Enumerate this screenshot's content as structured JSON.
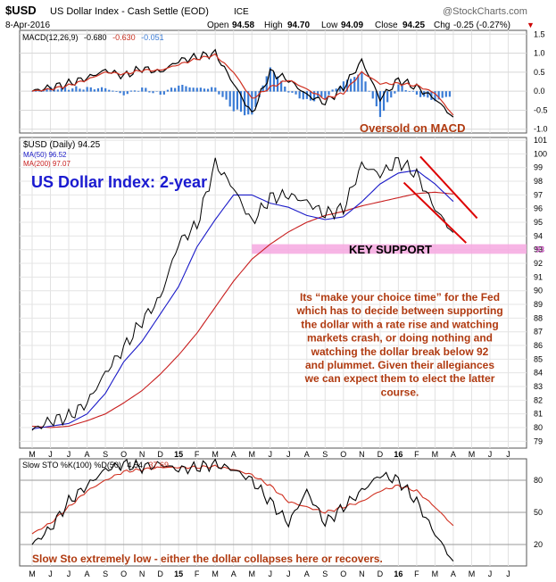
{
  "header": {
    "symbol": "$USD",
    "name": "US Dollar Index - Cash Settle (EOD)",
    "exchange": "ICE",
    "brand": "@StockCharts.com",
    "date": "8-Apr-2016",
    "open_label": "Open",
    "open": "94.58",
    "high_label": "High",
    "high": "94.70",
    "low_label": "Low",
    "low": "94.09",
    "close_label": "Close",
    "close": "94.25",
    "chg_label": "Chg",
    "chg": "-0.25 (-0.27%)",
    "chg_arrow": "▼"
  },
  "colors": {
    "price": "#000000",
    "ma50": "#1a1ac8",
    "ma200": "#c81e1e",
    "macd_hist": "#3a7bd5",
    "support_band": "#f6a8e0",
    "annotation": "#b03a10",
    "trend": "#dd0000",
    "title_blue": "#1a1ad0",
    "grid": "#c8c8c8"
  },
  "macd_panel": {
    "label": "MACD(12,26,9)",
    "v1": "-0.680",
    "v2": "-0.630",
    "v3": "-0.051",
    "annotation": "Oversold on MACD",
    "yticks": [
      "1.5",
      "1.0",
      "0.5",
      "0.0",
      "-0.5",
      "-1.0"
    ]
  },
  "price_panel": {
    "label": "$USD (Daily) 94.25",
    "ma50_label": "MA(50) 96.52",
    "ma200_label": "MA(200) 97.07",
    "title": "US Dollar Index: 2-year",
    "support_label": "KEY SUPPORT",
    "support_price": "93",
    "commentary": [
      "Its “make your choice time” for the Fed",
      "which has to decide between supporting",
      "the dollar with a rate rise and watching",
      "markets crash, or doing nothing and",
      "watching the dollar break below 92",
      "and plummet. Given their allegiances",
      "we can expect them to elect the latter",
      "course."
    ],
    "yticks": [
      "101",
      "100",
      "99",
      "98",
      "97",
      "96",
      "95",
      "94",
      "93",
      "92",
      "91",
      "90",
      "89",
      "88",
      "87",
      "86",
      "85",
      "84",
      "83",
      "82",
      "81",
      "80",
      "79"
    ]
  },
  "sto_panel": {
    "label": "Slow STO %K(100) %D(50)",
    "v1": "4.54",
    "v2": "37.69",
    "annotation": "Slow Sto extremely low - either the dollar collapses here or recovers.",
    "yticks": [
      "80",
      "50",
      "20"
    ]
  },
  "x_axis": {
    "labels": [
      "M",
      "J",
      "J",
      "A",
      "S",
      "O",
      "N",
      "D",
      "15",
      "F",
      "M",
      "A",
      "M",
      "J",
      "J",
      "A",
      "S",
      "O",
      "N",
      "D",
      "16",
      "F",
      "M",
      "A",
      "M",
      "J",
      "J"
    ]
  },
  "chart_data": {
    "type": "line",
    "title": "US Dollar Index: 2-year",
    "x": [
      "2014-05",
      "2014-06",
      "2014-07",
      "2014-08",
      "2014-09",
      "2014-10",
      "2014-11",
      "2014-12",
      "2015-01",
      "2015-02",
      "2015-03",
      "2015-04",
      "2015-05",
      "2015-06",
      "2015-07",
      "2015-08",
      "2015-09",
      "2015-10",
      "2015-11",
      "2015-12",
      "2016-01",
      "2016-02",
      "2016-03",
      "2016-04"
    ],
    "series": [
      {
        "name": "$USD (Daily)",
        "values": [
          79.8,
          80.5,
          80.8,
          81.8,
          84.0,
          85.8,
          87.8,
          89.5,
          93.5,
          94.8,
          99.3,
          97.5,
          95.0,
          96.8,
          97.0,
          96.5,
          95.6,
          96.0,
          99.2,
          98.5,
          99.5,
          98.5,
          96.0,
          94.25
        ]
      },
      {
        "name": "MA(50)",
        "values": [
          79.9,
          80.1,
          80.3,
          81.0,
          82.5,
          84.8,
          86.3,
          88.3,
          90.3,
          93.2,
          95.2,
          97.0,
          97.0,
          96.4,
          96.1,
          95.5,
          95.2,
          95.4,
          96.5,
          97.8,
          98.6,
          98.8,
          97.8,
          96.52
        ]
      },
      {
        "name": "MA(200)",
        "values": [
          80.1,
          80.0,
          80.1,
          80.5,
          81.0,
          81.8,
          82.7,
          83.9,
          85.3,
          86.9,
          88.8,
          90.7,
          92.3,
          93.4,
          94.3,
          95.0,
          95.5,
          95.8,
          96.2,
          96.5,
          96.8,
          97.1,
          97.2,
          97.07
        ]
      }
    ],
    "ylim": [
      78.5,
      101.2
    ],
    "support_band": [
      92.7,
      93.4
    ],
    "macd": {
      "x_months": 24,
      "values": [
        0.0,
        0.1,
        0.2,
        0.35,
        0.55,
        0.4,
        0.6,
        0.5,
        0.8,
        0.9,
        1.0,
        0.2,
        -0.6,
        0.5,
        0.3,
        -0.1,
        -0.3,
        0.1,
        0.8,
        -0.2,
        0.3,
        0.1,
        -0.2,
        -0.68
      ],
      "signal": [
        0.0,
        0.05,
        0.15,
        0.3,
        0.5,
        0.45,
        0.55,
        0.55,
        0.7,
        0.85,
        0.95,
        0.5,
        -0.2,
        0.1,
        0.3,
        0.05,
        -0.2,
        -0.05,
        0.5,
        0.2,
        0.2,
        0.15,
        -0.05,
        -0.63
      ],
      "ylim": [
        -1.1,
        1.6
      ]
    },
    "slow_sto": {
      "k": [
        20,
        35,
        60,
        75,
        90,
        95,
        92,
        95,
        90,
        92,
        95,
        90,
        80,
        60,
        40,
        70,
        40,
        55,
        70,
        85,
        80,
        60,
        30,
        4.54
      ],
      "d": [
        30,
        40,
        55,
        70,
        80,
        88,
        90,
        92,
        92,
        92,
        93,
        90,
        85,
        75,
        60,
        55,
        50,
        55,
        60,
        70,
        75,
        70,
        55,
        37.69
      ],
      "ylim": [
        0,
        100
      ],
      "levels": [
        20,
        50,
        80
      ]
    }
  }
}
